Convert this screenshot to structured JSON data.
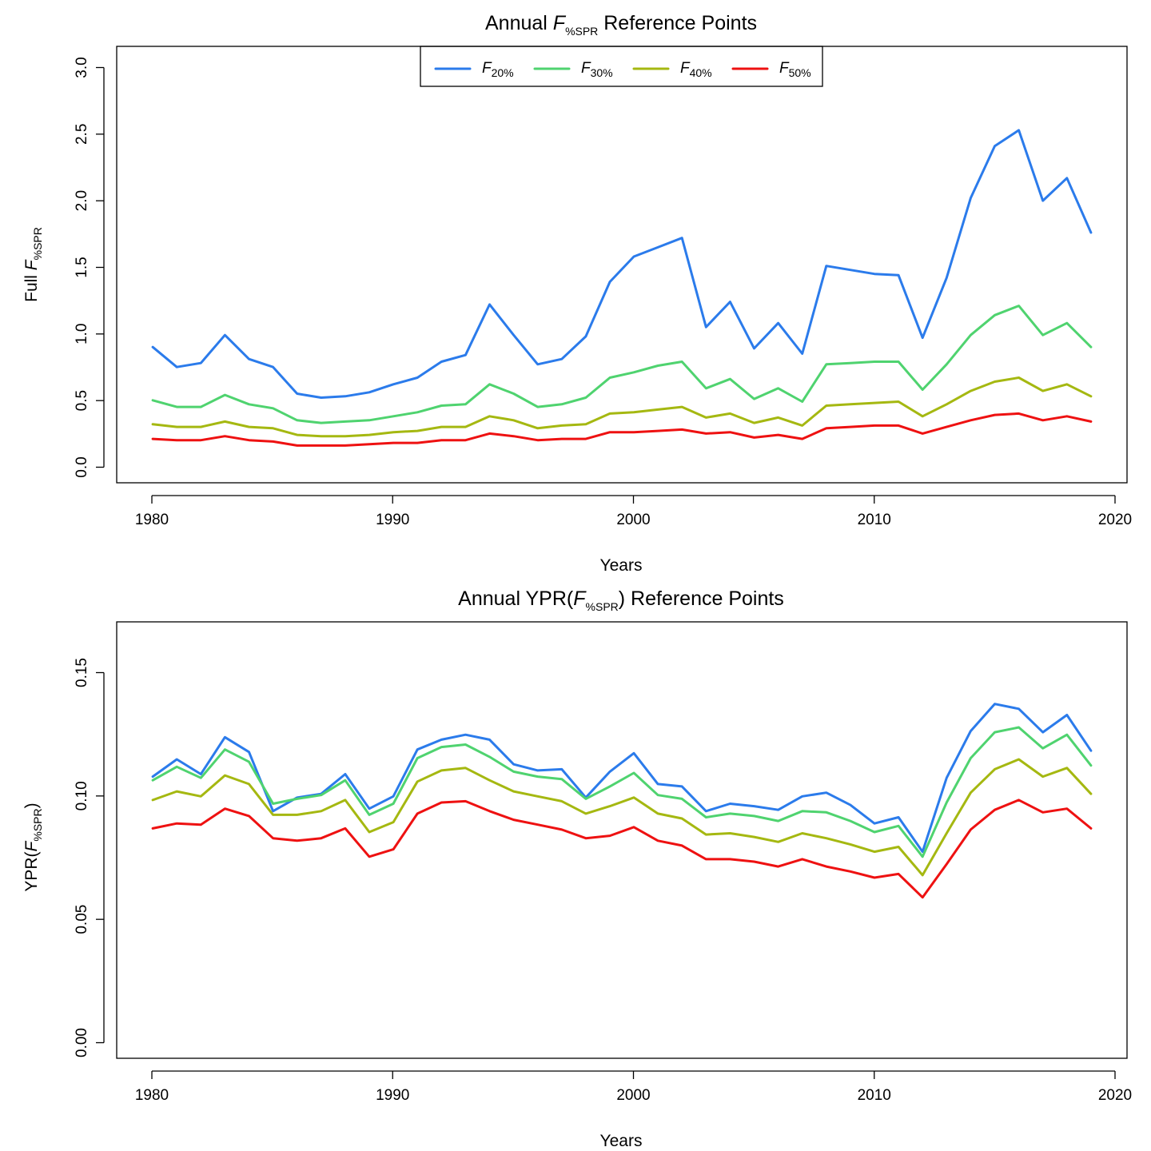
{
  "colors": {
    "F20": "#2B7BEB",
    "F30": "#4FD36F",
    "F40": "#A5B811",
    "F50": "#EE1111"
  },
  "chart_data": [
    {
      "type": "line",
      "title": {
        "prefix": "Annual ",
        "italic": "F",
        "sub": "%SPR",
        "suffix": " Reference Points"
      },
      "xlabel": "Years",
      "ylabel": {
        "prefix": "Full ",
        "italic": "F",
        "sub": "%SPR",
        "suffix": ""
      },
      "xlim": [
        1978.5,
        2020.5
      ],
      "ylim": [
        -0.12,
        3.16
      ],
      "xticks": [
        "1980",
        "1990",
        "2000",
        "2010",
        "2020"
      ],
      "yticks": [
        "0.0",
        "0.5",
        "1.0",
        "1.5",
        "2.0",
        "2.5",
        "3.0"
      ],
      "legend": {
        "position": "top",
        "entries": [
          {
            "italic": "F",
            "sub": "20%",
            "color_key": "F20"
          },
          {
            "italic": "F",
            "sub": "30%",
            "color_key": "F30"
          },
          {
            "italic": "F",
            "sub": "40%",
            "color_key": "F40"
          },
          {
            "italic": "F",
            "sub": "50%",
            "color_key": "F50"
          }
        ]
      },
      "x": [
        1980,
        1981,
        1982,
        1983,
        1984,
        1985,
        1986,
        1987,
        1988,
        1989,
        1990,
        1991,
        1992,
        1993,
        1994,
        1995,
        1996,
        1997,
        1998,
        1999,
        2000,
        2001,
        2002,
        2003,
        2004,
        2005,
        2006,
        2007,
        2008,
        2009,
        2010,
        2011,
        2012,
        2013,
        2014,
        2015,
        2016,
        2017,
        2018,
        2019
      ],
      "series": [
        {
          "name": "F20%",
          "color_key": "F20",
          "values": [
            0.9,
            0.75,
            0.78,
            0.99,
            0.81,
            0.75,
            0.55,
            0.52,
            0.53,
            0.56,
            0.62,
            0.67,
            0.79,
            0.84,
            1.22,
            0.99,
            0.77,
            0.81,
            0.98,
            1.39,
            1.58,
            1.65,
            1.72,
            1.05,
            1.24,
            0.89,
            1.08,
            0.85,
            1.51,
            1.48,
            1.45,
            1.44,
            0.97,
            1.42,
            2.02,
            2.41,
            2.53,
            2.0,
            2.17,
            1.76
          ]
        },
        {
          "name": "F30%",
          "color_key": "F30",
          "values": [
            0.5,
            0.45,
            0.45,
            0.54,
            0.47,
            0.44,
            0.35,
            0.33,
            0.34,
            0.35,
            0.38,
            0.41,
            0.46,
            0.47,
            0.62,
            0.55,
            0.45,
            0.47,
            0.52,
            0.67,
            0.71,
            0.76,
            0.79,
            0.59,
            0.66,
            0.51,
            0.59,
            0.49,
            0.77,
            0.78,
            0.79,
            0.79,
            0.58,
            0.77,
            0.99,
            1.14,
            1.21,
            0.99,
            1.08,
            0.9
          ]
        },
        {
          "name": "F40%",
          "color_key": "F40",
          "values": [
            0.32,
            0.3,
            0.3,
            0.34,
            0.3,
            0.29,
            0.24,
            0.23,
            0.23,
            0.24,
            0.26,
            0.27,
            0.3,
            0.3,
            0.38,
            0.35,
            0.29,
            0.31,
            0.32,
            0.4,
            0.41,
            0.43,
            0.45,
            0.37,
            0.4,
            0.33,
            0.37,
            0.31,
            0.46,
            0.47,
            0.48,
            0.49,
            0.38,
            0.47,
            0.57,
            0.64,
            0.67,
            0.57,
            0.62,
            0.53
          ]
        },
        {
          "name": "F50%",
          "color_key": "F50",
          "values": [
            0.21,
            0.2,
            0.2,
            0.23,
            0.2,
            0.19,
            0.16,
            0.16,
            0.16,
            0.17,
            0.18,
            0.18,
            0.2,
            0.2,
            0.25,
            0.23,
            0.2,
            0.21,
            0.21,
            0.26,
            0.26,
            0.27,
            0.28,
            0.25,
            0.26,
            0.22,
            0.24,
            0.21,
            0.29,
            0.3,
            0.31,
            0.31,
            0.25,
            0.3,
            0.35,
            0.39,
            0.4,
            0.35,
            0.38,
            0.34
          ]
        }
      ]
    },
    {
      "type": "line",
      "title": {
        "prefix": "Annual YPR(",
        "italic": "F",
        "sub": "%SPR",
        "suffix": ") Reference Points"
      },
      "xlabel": "Years",
      "ylabel": {
        "prefix": "YPR(",
        "italic": "F",
        "sub": "%SPR",
        "suffix": ")"
      },
      "xlim": [
        1978.5,
        2020.5
      ],
      "ylim": [
        -0.0063,
        0.1708
      ],
      "xticks": [
        "1980",
        "1990",
        "2000",
        "2010",
        "2020"
      ],
      "yticks": [
        "0.00",
        "0.05",
        "0.10",
        "0.15"
      ],
      "x": [
        1980,
        1981,
        1982,
        1983,
        1984,
        1985,
        1986,
        1987,
        1988,
        1989,
        1990,
        1991,
        1992,
        1993,
        1994,
        1995,
        1996,
        1997,
        1998,
        1999,
        2000,
        2001,
        2002,
        2003,
        2004,
        2005,
        2006,
        2007,
        2008,
        2009,
        2010,
        2011,
        2012,
        2013,
        2014,
        2015,
        2016,
        2017,
        2018,
        2019
      ],
      "series": [
        {
          "name": "F20%",
          "color_key": "F20",
          "values": [
            0.108,
            0.115,
            0.109,
            0.124,
            0.118,
            0.094,
            0.0995,
            0.101,
            0.109,
            0.095,
            0.1,
            0.119,
            0.123,
            0.125,
            0.123,
            0.113,
            0.1105,
            0.111,
            0.0995,
            0.11,
            0.1175,
            0.105,
            0.104,
            0.094,
            0.097,
            0.096,
            0.0945,
            0.1,
            0.1015,
            0.0965,
            0.089,
            0.0915,
            0.0775,
            0.1075,
            0.1265,
            0.1375,
            0.1355,
            0.126,
            0.133,
            0.1185
          ]
        },
        {
          "name": "F30%",
          "color_key": "F30",
          "values": [
            0.1065,
            0.112,
            0.1075,
            0.119,
            0.114,
            0.097,
            0.099,
            0.1005,
            0.1065,
            0.0925,
            0.097,
            0.1155,
            0.12,
            0.121,
            0.116,
            0.11,
            0.108,
            0.107,
            0.099,
            0.104,
            0.1095,
            0.1005,
            0.099,
            0.0915,
            0.093,
            0.092,
            0.09,
            0.094,
            0.0935,
            0.09,
            0.0855,
            0.088,
            0.0755,
            0.0975,
            0.1155,
            0.126,
            0.128,
            0.1195,
            0.125,
            0.1125
          ]
        },
        {
          "name": "F40%",
          "color_key": "F40",
          "values": [
            0.0985,
            0.102,
            0.1,
            0.1085,
            0.105,
            0.0925,
            0.0925,
            0.094,
            0.0985,
            0.0855,
            0.0895,
            0.106,
            0.1105,
            0.1115,
            0.1065,
            0.102,
            0.1,
            0.098,
            0.093,
            0.096,
            0.0995,
            0.093,
            0.091,
            0.0845,
            0.085,
            0.0835,
            0.0815,
            0.085,
            0.083,
            0.0805,
            0.0775,
            0.0795,
            0.068,
            0.085,
            0.1015,
            0.111,
            0.115,
            0.108,
            0.1115,
            0.101
          ]
        },
        {
          "name": "F50%",
          "color_key": "F50",
          "values": [
            0.087,
            0.089,
            0.0885,
            0.095,
            0.092,
            0.083,
            0.082,
            0.083,
            0.087,
            0.0755,
            0.0785,
            0.093,
            0.0975,
            0.098,
            0.094,
            0.0905,
            0.0885,
            0.0865,
            0.083,
            0.084,
            0.0875,
            0.082,
            0.08,
            0.0745,
            0.0745,
            0.0735,
            0.0715,
            0.0745,
            0.0715,
            0.0695,
            0.067,
            0.0685,
            0.059,
            0.0725,
            0.0865,
            0.0945,
            0.0985,
            0.0935,
            0.095,
            0.087
          ]
        }
      ]
    }
  ]
}
